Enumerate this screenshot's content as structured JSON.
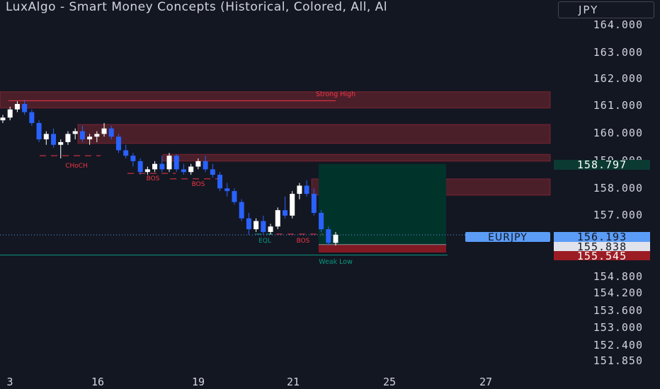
{
  "header": {
    "title": "LuxAlgo - Smart Money Concepts (Historical, Colored, All, Al",
    "currency": "JPY"
  },
  "colors": {
    "background": "#131722",
    "bull": "#ffffff",
    "bear": "#2962ff",
    "bearish_zone": "#f23645",
    "bullish_line": "#089981",
    "profit_zone": "#00332a",
    "loss_zone": "#801922",
    "symbol_tag": "#5b9cf6",
    "axis_text": "#d1d4dc"
  },
  "price_axis": {
    "ticks": [
      "164.000",
      "163.000",
      "162.000",
      "161.000",
      "160.000",
      "159.000",
      "158.000",
      "157.000",
      "154.800",
      "154.200",
      "153.600",
      "153.000",
      "152.400",
      "151.850"
    ]
  },
  "time_axis": {
    "ticks": [
      "3",
      "16",
      "19",
      "21",
      "25",
      "27"
    ]
  },
  "price_labels": {
    "target": "158.797",
    "current": "156.193",
    "entry": "155.838",
    "stop": "155.545",
    "symbol": "EURJPY"
  },
  "annotations": {
    "strong_high": "Strong High",
    "weak_low": "Weak Low",
    "choch": "CHoCH",
    "bos": "BOS",
    "eql": "EQL"
  },
  "chart_data": {
    "type": "candlestick",
    "symbol": "EURJPY",
    "current_price": 156.193,
    "strong_high": 161.12,
    "weak_low": 155.45,
    "order_blocks": [
      {
        "type": "bearish",
        "top": 161.45,
        "bottom": 160.85
      },
      {
        "type": "bearish",
        "top": 160.25,
        "bottom": 159.55
      },
      {
        "type": "bearish",
        "top": 159.15,
        "bottom": 158.9
      },
      {
        "type": "bearish",
        "top": 158.25,
        "bottom": 157.65
      }
    ],
    "position": {
      "side": "long",
      "entry": 155.838,
      "take_profit": 158.797,
      "stop_loss": 155.545
    },
    "ohlc": [
      [
        160.4,
        160.6,
        160.3,
        160.5
      ],
      [
        160.5,
        160.9,
        160.4,
        160.8
      ],
      [
        160.8,
        161.1,
        160.7,
        161.0
      ],
      [
        161.0,
        161.15,
        160.6,
        160.7
      ],
      [
        160.7,
        160.8,
        160.2,
        160.3
      ],
      [
        160.3,
        160.4,
        159.6,
        159.7
      ],
      [
        159.7,
        160.0,
        159.5,
        159.9
      ],
      [
        159.9,
        160.1,
        159.4,
        159.5
      ],
      [
        159.5,
        159.7,
        159.0,
        159.6
      ],
      [
        159.6,
        160.0,
        159.5,
        159.9
      ],
      [
        159.9,
        160.1,
        159.7,
        160.0
      ],
      [
        160.0,
        160.2,
        159.6,
        159.7
      ],
      [
        159.7,
        159.9,
        159.5,
        159.8
      ],
      [
        159.8,
        160.0,
        159.6,
        159.9
      ],
      [
        159.9,
        160.3,
        159.8,
        160.1
      ],
      [
        160.1,
        160.2,
        159.7,
        159.8
      ],
      [
        159.8,
        159.9,
        159.2,
        159.3
      ],
      [
        159.3,
        159.5,
        159.0,
        159.1
      ],
      [
        159.1,
        159.2,
        158.7,
        158.9
      ],
      [
        158.9,
        159.0,
        158.4,
        158.5
      ],
      [
        158.5,
        158.7,
        158.4,
        158.6
      ],
      [
        158.6,
        158.9,
        158.5,
        158.8
      ],
      [
        158.8,
        159.1,
        158.5,
        158.6
      ],
      [
        158.6,
        159.2,
        158.5,
        159.1
      ],
      [
        159.1,
        159.15,
        158.5,
        158.6
      ],
      [
        158.6,
        158.8,
        158.4,
        158.5
      ],
      [
        158.5,
        158.8,
        158.4,
        158.7
      ],
      [
        158.7,
        159.0,
        158.6,
        158.9
      ],
      [
        158.9,
        159.1,
        158.5,
        158.6
      ],
      [
        158.6,
        158.8,
        158.3,
        158.4
      ],
      [
        158.4,
        158.5,
        157.8,
        157.9
      ],
      [
        157.9,
        158.1,
        157.6,
        157.8
      ],
      [
        157.8,
        157.9,
        157.3,
        157.4
      ],
      [
        157.4,
        157.5,
        156.7,
        156.8
      ],
      [
        156.8,
        157.0,
        156.2,
        156.4
      ],
      [
        156.4,
        156.8,
        156.3,
        156.7
      ],
      [
        156.7,
        156.9,
        156.2,
        156.3
      ],
      [
        156.3,
        156.6,
        156.2,
        156.5
      ],
      [
        156.5,
        157.2,
        156.4,
        157.1
      ],
      [
        157.1,
        157.6,
        156.8,
        156.9
      ],
      [
        156.9,
        157.8,
        156.8,
        157.7
      ],
      [
        157.7,
        158.1,
        157.5,
        158.0
      ],
      [
        158.0,
        158.2,
        157.6,
        157.7
      ],
      [
        157.7,
        157.9,
        156.9,
        157.0
      ],
      [
        157.0,
        157.1,
        156.3,
        156.4
      ],
      [
        156.4,
        156.5,
        155.8,
        155.9
      ],
      [
        155.9,
        156.3,
        155.8,
        156.2
      ]
    ]
  }
}
